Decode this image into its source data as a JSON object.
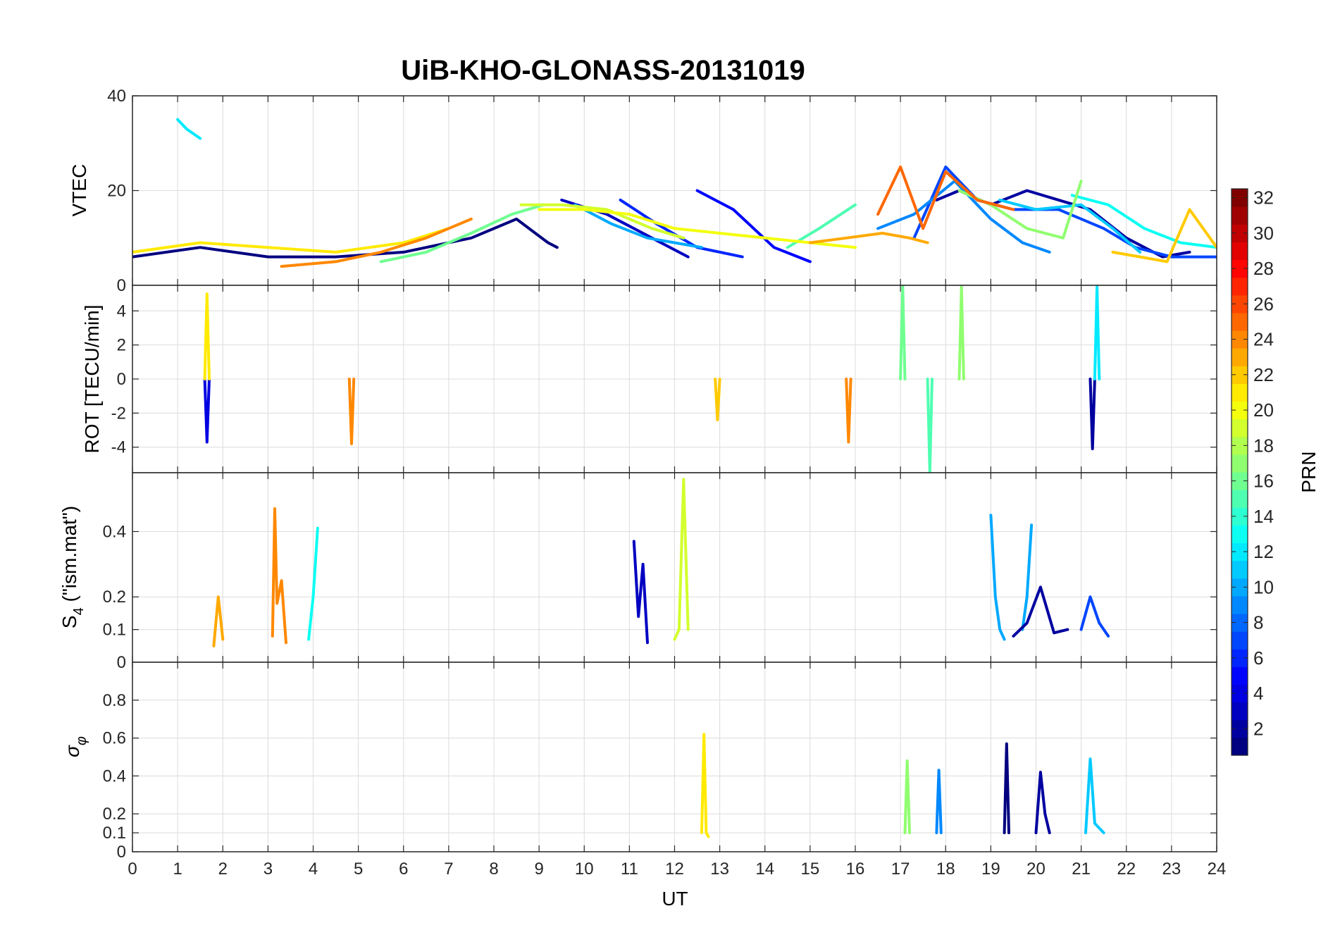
{
  "chart_data": {
    "type": "line",
    "title": "UiB-KHO-GLONASS-20131019",
    "xlabel": "UT",
    "xlim": [
      0,
      24
    ],
    "x_ticks": [
      0,
      1,
      2,
      3,
      4,
      5,
      6,
      7,
      8,
      9,
      10,
      11,
      12,
      13,
      14,
      15,
      16,
      17,
      18,
      19,
      20,
      21,
      22,
      23,
      24
    ],
    "x_tick_labels": [
      "0",
      "1",
      "2",
      "3",
      "4",
      "5",
      "6",
      "7",
      "8",
      "9",
      "10",
      "11",
      "12",
      "13",
      "14",
      "15",
      "16",
      "17",
      "18",
      "19",
      "20",
      "21",
      "22",
      "23",
      "24"
    ],
    "grid": true,
    "panels": [
      {
        "id": "vtec",
        "ylabel": "VTEC",
        "ylim": [
          0,
          40
        ],
        "y_ticks": [
          0,
          20,
          40
        ],
        "y_tick_labels": [
          "0",
          "20",
          "40"
        ],
        "series": [
          {
            "prn": 1,
            "x": [
              0,
              1.5,
              3,
              4.5,
              6,
              7.5,
              8.5,
              9.2,
              9.4
            ],
            "y": [
              6,
              8,
              6,
              6,
              7,
              10,
              14,
              9,
              8
            ]
          },
          {
            "prn": 3,
            "x": [
              9.5,
              10.5,
              11.5,
              12.3
            ],
            "y": [
              18,
              15,
              10,
              6
            ]
          },
          {
            "prn": 5,
            "x": [
              12.5,
              13.3,
              14.2,
              15.0
            ],
            "y": [
              20,
              16,
              8,
              5
            ]
          },
          {
            "prn": 6,
            "x": [
              10.8,
              11.6,
              12.5,
              13.5
            ],
            "y": [
              18,
              13,
              8,
              6
            ]
          },
          {
            "prn": 2,
            "x": [
              17.8,
              18.3,
              19.0,
              19.8,
              20.5,
              21.2,
              22.0,
              22.8,
              23.4
            ],
            "y": [
              18,
              20,
              17,
              20,
              18,
              16,
              10,
              6,
              7
            ]
          },
          {
            "prn": 7,
            "x": [
              17.3,
              18.0,
              18.7,
              19.5,
              20.5,
              21.5,
              22.2,
              23.0,
              24.0
            ],
            "y": [
              10,
              25,
              18,
              16,
              16,
              12,
              8,
              6,
              6
            ]
          },
          {
            "prn": 9,
            "x": [
              16.5,
              17.3,
              18.2,
              19.0,
              19.7,
              20.3
            ],
            "y": [
              12,
              15,
              22,
              14,
              9,
              7
            ]
          },
          {
            "prn": 10,
            "x": [
              9.8,
              10.6,
              11.4,
              12.0,
              12.6
            ],
            "y": [
              17,
              13,
              10,
              9,
              8
            ]
          },
          {
            "prn": 11,
            "x": [
              19.2,
              20.0,
              21.0,
              21.7,
              22.3
            ],
            "y": [
              18,
              16,
              17,
              12,
              7
            ]
          },
          {
            "prn": 12,
            "x": [
              1.0,
              1.2,
              1.5
            ],
            "y": [
              35,
              33,
              31
            ]
          },
          {
            "prn": 13,
            "x": [
              20.8,
              21.6,
              22.4,
              23.2,
              24.0
            ],
            "y": [
              19,
              17,
              12,
              9,
              8
            ]
          },
          {
            "prn": 15,
            "x": [
              14.5,
              15.2,
              16.0
            ],
            "y": [
              8,
              12,
              17
            ]
          },
          {
            "prn": 16,
            "x": [
              5.5,
              6.5,
              7.5,
              8.4,
              9.1
            ],
            "y": [
              5,
              7,
              11,
              15,
              17
            ]
          },
          {
            "prn": 17,
            "x": [
              18.3,
              19.0,
              19.8,
              20.6,
              21.0
            ],
            "y": [
              20,
              17,
              12,
              10,
              22
            ]
          },
          {
            "prn": 19,
            "x": [
              8.6,
              9.5,
              10.5,
              11.5,
              12.2
            ],
            "y": [
              17,
              17,
              16,
              12,
              10
            ]
          },
          {
            "prn": 20,
            "x": [
              9.0,
              10.0,
              11.0,
              12.0,
              13.0,
              14.0,
              15.0,
              16.0
            ],
            "y": [
              16,
              16,
              15,
              12,
              11,
              10,
              9,
              8
            ]
          },
          {
            "prn": 21,
            "x": [
              0,
              1.5,
              3.0,
              4.5,
              6.0,
              7.0
            ],
            "y": [
              7,
              9,
              8,
              7,
              9,
              12
            ]
          },
          {
            "prn": 22,
            "x": [
              21.7,
              22.3,
              22.9,
              23.4,
              24.0
            ],
            "y": [
              7,
              6,
              5,
              16,
              8
            ]
          },
          {
            "prn": 23,
            "x": [
              15.0,
              15.8,
              16.6,
              17.2,
              17.6
            ],
            "y": [
              9,
              10,
              11,
              10,
              9
            ]
          },
          {
            "prn": 24,
            "x": [
              3.3,
              4.5,
              5.5,
              6.5,
              7.5
            ],
            "y": [
              4,
              5,
              7,
              10,
              14
            ]
          },
          {
            "prn": 25,
            "x": [
              16.5,
              17.0,
              17.5,
              18.0,
              18.7,
              19.5
            ],
            "y": [
              15,
              25,
              12,
              24,
              18,
              16
            ]
          }
        ]
      },
      {
        "id": "rot",
        "ylabel": "ROT [TECU/min]",
        "ylim": [
          -5.5,
          5.5
        ],
        "y_ticks": [
          -4,
          -2,
          0,
          2,
          4
        ],
        "y_tick_labels": [
          "-4",
          "-2",
          "0",
          "2",
          "4"
        ],
        "series": [
          {
            "prn": 4,
            "x": [
              1.6,
              1.65,
              1.7
            ],
            "y": [
              0,
              -3.7,
              0
            ]
          },
          {
            "prn": 2,
            "x": [
              21.2,
              21.25,
              21.3
            ],
            "y": [
              0,
              -4.1,
              0
            ]
          },
          {
            "prn": 24,
            "x": [
              4.8,
              4.85,
              4.9
            ],
            "y": [
              0,
              -3.8,
              0
            ]
          },
          {
            "prn": 24,
            "x": [
              15.8,
              15.85,
              15.9
            ],
            "y": [
              0,
              -3.7,
              0
            ]
          },
          {
            "prn": 21,
            "x": [
              1.6,
              1.65,
              1.7
            ],
            "y": [
              0,
              5.0,
              0
            ]
          },
          {
            "prn": 12,
            "x": [
              21.3,
              21.35,
              21.4
            ],
            "y": [
              0,
              5.4,
              0
            ]
          },
          {
            "prn": 16,
            "x": [
              17.0,
              17.05,
              17.1
            ],
            "y": [
              0,
              5.5,
              0
            ]
          },
          {
            "prn": 15,
            "x": [
              17.6,
              17.65,
              17.7
            ],
            "y": [
              0,
              -5.5,
              0
            ]
          },
          {
            "prn": 17,
            "x": [
              18.3,
              18.35,
              18.4
            ],
            "y": [
              0,
              5.4,
              0
            ]
          },
          {
            "prn": 22,
            "x": [
              12.9,
              12.95,
              13.0
            ],
            "y": [
              0,
              -2.4,
              0
            ]
          }
        ]
      },
      {
        "id": "s4",
        "ylabel": "S4 (\"ism.mat\")",
        "ylabel_main": "S",
        "ylabel_sub": "4",
        "ylabel_rest": " (\"ism.mat\")",
        "ylim": [
          0,
          0.58
        ],
        "y_ticks": [
          0,
          0.1,
          0.2,
          0.4
        ],
        "y_tick_labels": [
          "0",
          "0.1",
          "0.2",
          "0.4"
        ],
        "series": [
          {
            "prn": 24,
            "x": [
              3.1,
              3.15,
              3.2,
              3.3,
              3.4
            ],
            "y": [
              0.08,
              0.47,
              0.18,
              0.25,
              0.06
            ]
          },
          {
            "prn": 13,
            "x": [
              3.9,
              4.0,
              4.1
            ],
            "y": [
              0.07,
              0.2,
              0.41
            ]
          },
          {
            "prn": 23,
            "x": [
              1.8,
              1.9,
              2.0
            ],
            "y": [
              0.05,
              0.2,
              0.07
            ]
          },
          {
            "prn": 3,
            "x": [
              11.1,
              11.2,
              11.3,
              11.4
            ],
            "y": [
              0.37,
              0.14,
              0.3,
              0.06
            ]
          },
          {
            "prn": 19,
            "x": [
              12.0,
              12.1,
              12.2,
              12.3
            ],
            "y": [
              0.07,
              0.1,
              0.56,
              0.1
            ]
          },
          {
            "prn": 10,
            "x": [
              19.0,
              19.1,
              19.2,
              19.3
            ],
            "y": [
              0.45,
              0.2,
              0.1,
              0.07
            ]
          },
          {
            "prn": 10,
            "x": [
              19.7,
              19.8,
              19.9
            ],
            "y": [
              0.1,
              0.2,
              0.42
            ]
          },
          {
            "prn": 2,
            "x": [
              19.5,
              19.8,
              20.1,
              20.4,
              20.7
            ],
            "y": [
              0.08,
              0.12,
              0.23,
              0.09,
              0.1
            ]
          },
          {
            "prn": 7,
            "x": [
              21.0,
              21.2,
              21.4,
              21.6
            ],
            "y": [
              0.1,
              0.2,
              0.12,
              0.08
            ]
          }
        ]
      },
      {
        "id": "sigma_phi",
        "ylabel": "σφ",
        "ylabel_main": "σ",
        "ylabel_sub": "φ",
        "ylim": [
          0,
          1.0
        ],
        "y_ticks": [
          0,
          0.1,
          0.2,
          0.4,
          0.6,
          0.8
        ],
        "y_tick_labels": [
          "0",
          "0.1",
          "0.2",
          "0.4",
          "0.6",
          "0.8"
        ],
        "series": [
          {
            "prn": 21,
            "x": [
              12.6,
              12.65,
              12.7,
              12.75
            ],
            "y": [
              0.1,
              0.62,
              0.1,
              0.08
            ]
          },
          {
            "prn": 1,
            "x": [
              19.3,
              19.35,
              19.4
            ],
            "y": [
              0.1,
              0.57,
              0.1
            ]
          },
          {
            "prn": 17,
            "x": [
              17.1,
              17.15,
              17.2
            ],
            "y": [
              0.1,
              0.48,
              0.1
            ]
          },
          {
            "prn": 11,
            "x": [
              21.1,
              21.2,
              21.3,
              21.5
            ],
            "y": [
              0.1,
              0.49,
              0.15,
              0.1
            ]
          },
          {
            "prn": 9,
            "x": [
              17.8,
              17.85,
              17.9
            ],
            "y": [
              0.1,
              0.43,
              0.1
            ]
          },
          {
            "prn": 2,
            "x": [
              20.0,
              20.1,
              20.2,
              20.3
            ],
            "y": [
              0.1,
              0.42,
              0.2,
              0.1
            ]
          }
        ]
      }
    ],
    "colorbar": {
      "label": "PRN",
      "colormap": "jet",
      "range": [
        1,
        32
      ],
      "ticks": [
        2,
        4,
        6,
        8,
        10,
        12,
        14,
        16,
        18,
        20,
        22,
        24,
        26,
        28,
        30,
        32
      ],
      "tick_labels": [
        "2",
        "4",
        "6",
        "8",
        "10",
        "12",
        "14",
        "16",
        "18",
        "20",
        "22",
        "24",
        "26",
        "28",
        "30",
        "32"
      ]
    }
  }
}
